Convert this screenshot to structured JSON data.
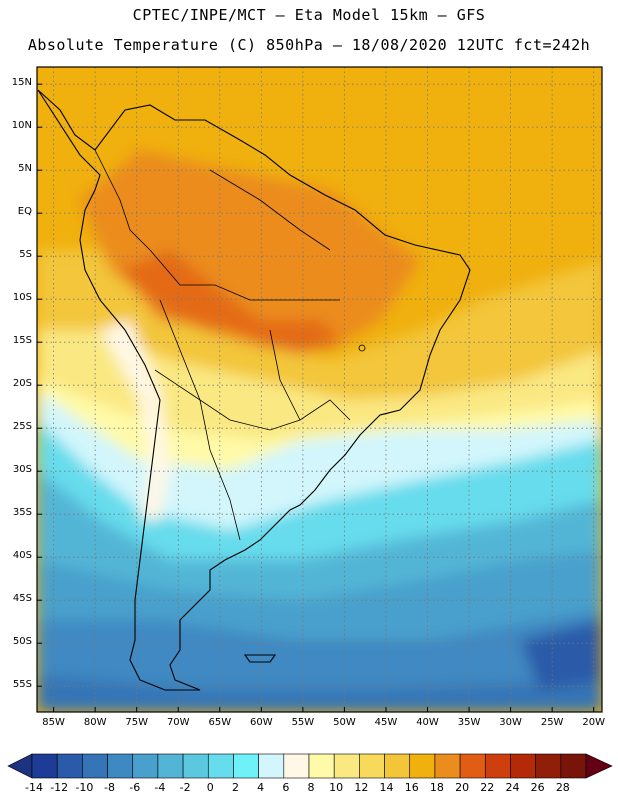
{
  "header": {
    "line1": "CPTEC/INPE/MCT –  Eta Model 15km – GFS",
    "line2": "Absolute Temperature (C) 850hPa – 18/08/2020 12UTC fct=242h"
  },
  "map": {
    "region": "South America",
    "field": "Absolute Temperature (C) 850hPa",
    "lat_labels": [
      "15N",
      "10N",
      "5N",
      "EQ",
      "5S",
      "10S",
      "15S",
      "20S",
      "25S",
      "30S",
      "35S",
      "40S",
      "45S",
      "50S",
      "55S"
    ],
    "lat_values": [
      15,
      10,
      5,
      0,
      -5,
      -10,
      -15,
      -20,
      -25,
      -30,
      -35,
      -40,
      -45,
      -50,
      -55
    ],
    "lon_labels": [
      "85W",
      "80W",
      "75W",
      "70W",
      "65W",
      "60W",
      "55W",
      "50W",
      "45W",
      "40W",
      "35W",
      "30W",
      "25W",
      "20W"
    ],
    "lon_values": [
      -85,
      -80,
      -75,
      -70,
      -65,
      -60,
      -55,
      -50,
      -45,
      -40,
      -35,
      -30,
      -25,
      -20
    ],
    "lat_range": [
      -58,
      17
    ],
    "lon_range": [
      -87,
      -19
    ]
  },
  "colorbar": {
    "labels": [
      "-14",
      "-12",
      "-10",
      "-8",
      "-6",
      "-4",
      "-2",
      "0",
      "2",
      "4",
      "6",
      "8",
      "10",
      "12",
      "14",
      "16",
      "18",
      "20",
      "22",
      "24",
      "26",
      "28"
    ],
    "colors": [
      "#1e3c96",
      "#2a5aa8",
      "#3574b6",
      "#3f89c2",
      "#4aa0cc",
      "#52b5d6",
      "#5cc8e0",
      "#66dcec",
      "#6ef2f8",
      "#d2f6fc",
      "#fff8e6",
      "#fffaa8",
      "#fae882",
      "#f7d95c",
      "#f3c63a",
      "#f0b00e",
      "#eb8c1e",
      "#e15d14",
      "#cd3f0e",
      "#b42a08",
      "#911e08",
      "#78140a"
    ],
    "under_color": "#1e3282",
    "over_color": "#640014"
  }
}
